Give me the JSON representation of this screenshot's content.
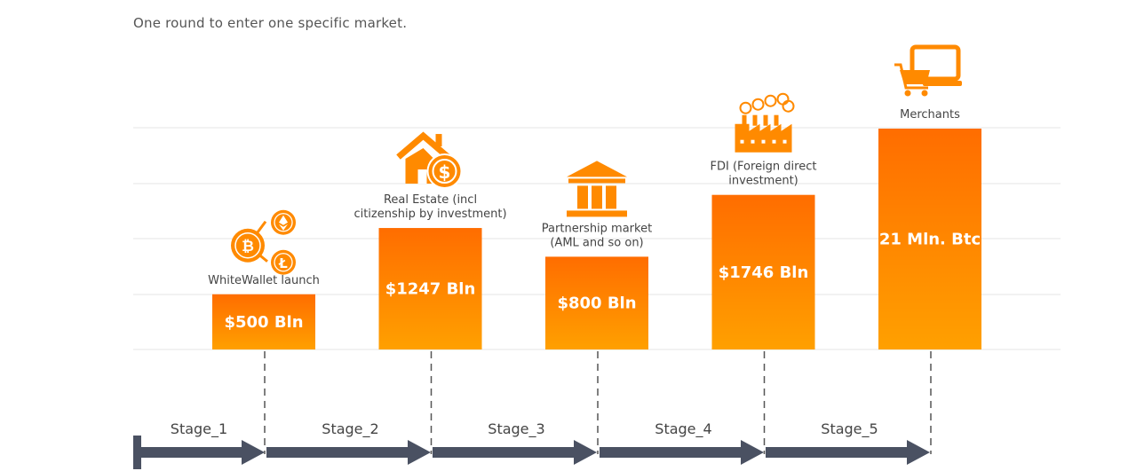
{
  "intro": "One round to enter one specific market.",
  "colors": {
    "bar_top": "#ff6d00",
    "bar_bottom": "#ffa000",
    "icon": "#ff8a00",
    "arrow": "#4a5162",
    "grid": "#e6e6e6",
    "dash": "#555555"
  },
  "chart_data": {
    "type": "bar",
    "categories": [
      "Stage_1",
      "Stage_2",
      "Stage_3",
      "Stage_4",
      "Stage_5"
    ],
    "bars": [
      {
        "label": "WhiteWallet launch",
        "value_text": "$500 Bln",
        "icon": "crypto-coins-icon",
        "level": 0.25
      },
      {
        "label": "Real Estate (incl\ncitizenship by investment)",
        "value_text": "$1247 Bln",
        "icon": "house-dollar-icon",
        "level": 0.55
      },
      {
        "label": "Partnership market\n(AML and so on)",
        "value_text": "$800 Bln",
        "icon": "bank-building-icon",
        "level": 0.42
      },
      {
        "label": "FDI (Foreign direct\ninvestment)",
        "value_text": "$1746 Bln",
        "icon": "factory-icon",
        "level": 0.7
      },
      {
        "label": "Merchants",
        "value_text": "21 Mln. Btc",
        "icon": "shopping-cart-laptop-icon",
        "level": 1.0
      }
    ],
    "grid": true,
    "legend": "none"
  }
}
